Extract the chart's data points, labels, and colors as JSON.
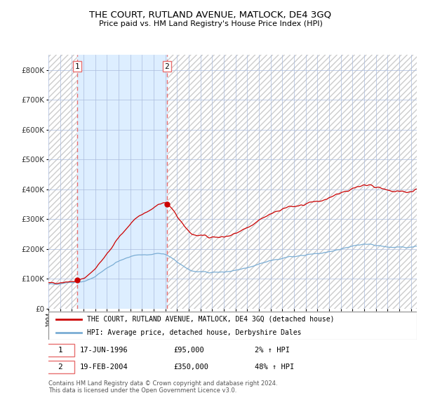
{
  "title": "THE COURT, RUTLAND AVENUE, MATLOCK, DE4 3GQ",
  "subtitle": "Price paid vs. HM Land Registry's House Price Index (HPI)",
  "legend_line1": "THE COURT, RUTLAND AVENUE, MATLOCK, DE4 3GQ (detached house)",
  "legend_line2": "HPI: Average price, detached house, Derbyshire Dales",
  "sale1_date": "17-JUN-1996",
  "sale1_price": 95000,
  "sale1_hpi": "2% ↑ HPI",
  "sale2_date": "19-FEB-2004",
  "sale2_price": 350000,
  "sale2_hpi": "48% ↑ HPI",
  "copyright": "Contains HM Land Registry data © Crown copyright and database right 2024.\nThis data is licensed under the Open Government Licence v3.0.",
  "hpi_color": "#7aadd4",
  "price_color": "#cc0000",
  "sale_dot_color": "#cc0000",
  "vline_color": "#e87070",
  "shade_color": "#ddeeff",
  "grid_color": "#aabbdd",
  "ylabel_color": "#333333",
  "ylim": [
    0,
    850000
  ],
  "yticks": [
    0,
    100000,
    200000,
    300000,
    400000,
    500000,
    600000,
    700000,
    800000
  ],
  "xstart": 1994.0,
  "xend": 2025.5,
  "sale1_x": 1996.46,
  "sale2_x": 2004.13
}
